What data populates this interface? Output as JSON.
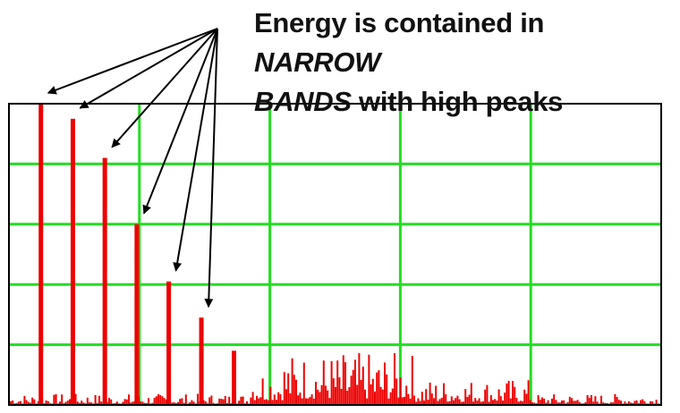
{
  "annotation": {
    "part1": "Energy is contained in ",
    "em1": "NARROW",
    "em2": "BANDS",
    "part2": " with high peaks"
  },
  "colors": {
    "plot_border": "#000000",
    "grid": "#22dd22",
    "spectrum": "#ee0000",
    "arrow": "#000000",
    "text": "#111111"
  },
  "chart_data": {
    "type": "bar",
    "title": "",
    "xlabel": "",
    "ylabel": "",
    "grid": true,
    "ylim": [
      0,
      1
    ],
    "xlim": [
      0,
      1
    ],
    "grid_x_divisions": 5,
    "grid_y_divisions": 5,
    "peaks": [
      {
        "x": 0.049,
        "value": 1.0
      },
      {
        "x": 0.098,
        "value": 0.95
      },
      {
        "x": 0.147,
        "value": 0.82
      },
      {
        "x": 0.196,
        "value": 0.6
      },
      {
        "x": 0.245,
        "value": 0.41
      },
      {
        "x": 0.295,
        "value": 0.29
      },
      {
        "x": 0.345,
        "value": 0.18
      }
    ],
    "annotated_peak_count": 6,
    "noise_floor": {
      "x_start": 0.0,
      "x_end": 1.0,
      "baseline_level": 0.03,
      "broadband_region": [
        0.42,
        0.62
      ],
      "broadband_level": 0.14
    }
  }
}
